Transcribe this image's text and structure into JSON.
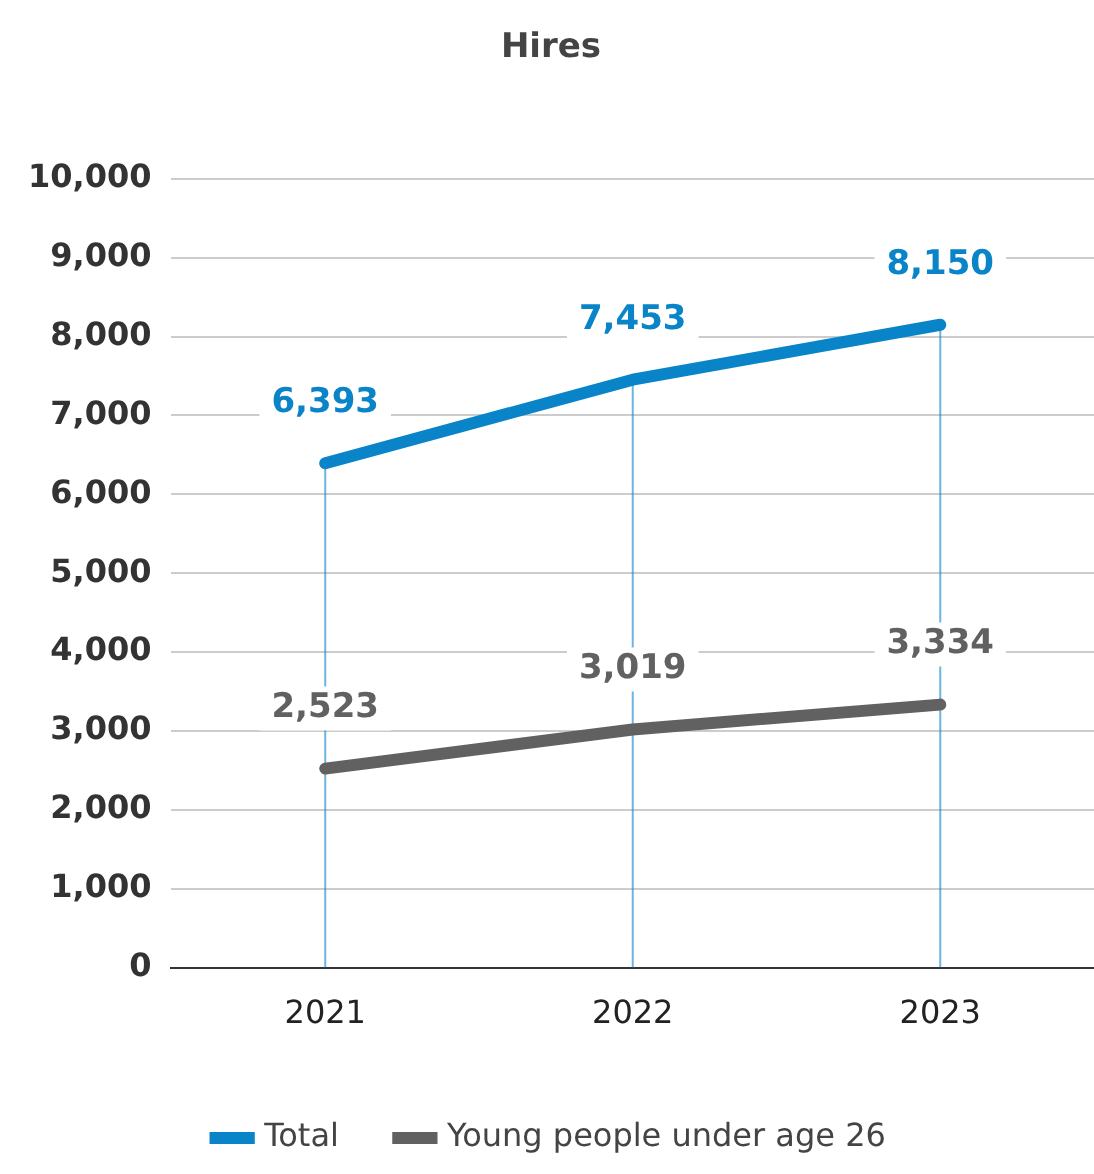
{
  "chart_data": {
    "type": "line",
    "title": "Hires",
    "categories": [
      "2021",
      "2022",
      "2023"
    ],
    "series": [
      {
        "name": "Total",
        "color": "#0a84c8",
        "values": [
          6393,
          7453,
          8150
        ],
        "value_labels": [
          "6,393",
          "7,453",
          "8,150"
        ]
      },
      {
        "name": "Young people under age 26",
        "color": "#616161",
        "values": [
          2523,
          3019,
          3334
        ],
        "value_labels": [
          "2,523",
          "3,019",
          "3,334"
        ]
      }
    ],
    "ylim": [
      0,
      10000
    ],
    "yticks": [
      0,
      {
        "value": 1000,
        "label": "1,000"
      },
      {
        "value": 2000,
        "label": "2,000"
      },
      {
        "value": 3000,
        "label": "3,000"
      },
      {
        "value": 4000,
        "label": "4,000"
      },
      {
        "value": 5000,
        "label": "5,000"
      },
      {
        "value": 6000,
        "label": "6,000"
      },
      {
        "value": 7000,
        "label": "7,000"
      },
      {
        "value": 8000,
        "label": "8,000"
      },
      {
        "value": 9000,
        "label": "9,000"
      },
      {
        "value": 10000,
        "label": "10,000"
      }
    ],
    "grid": true,
    "legend": "bottom",
    "marker": "none",
    "line_style": "solid"
  }
}
